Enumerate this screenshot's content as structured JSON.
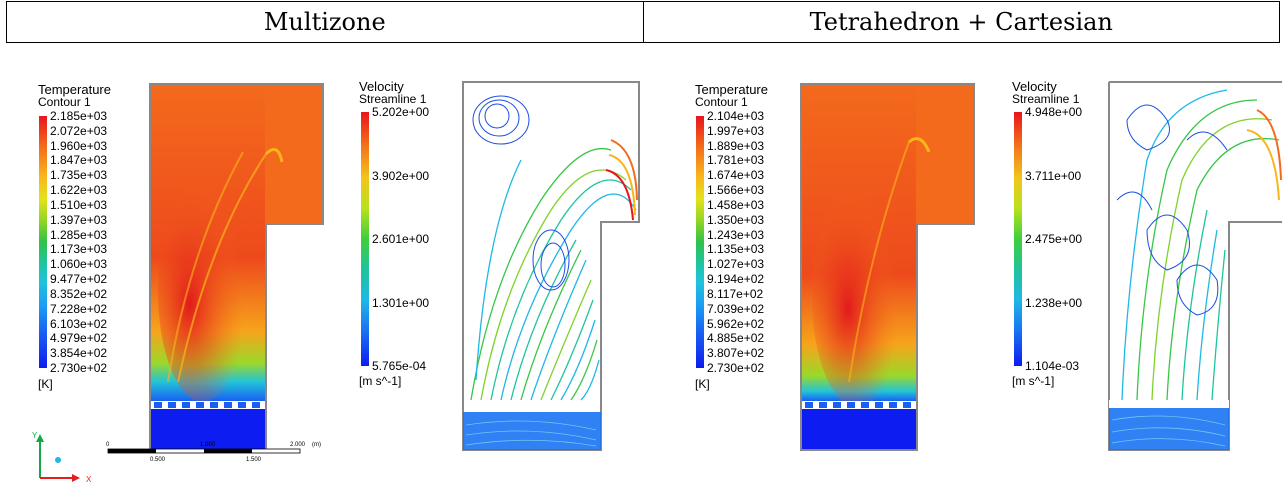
{
  "headers": [
    "Multizone",
    "Tetrahedron  + Cartesian"
  ],
  "left": {
    "temperature": {
      "title": "Temperature",
      "subtitle": "Contour 1",
      "ticks": [
        "2.185e+03",
        "2.072e+03",
        "1.960e+03",
        "1.847e+03",
        "1.735e+03",
        "1.622e+03",
        "1.510e+03",
        "1.397e+03",
        "1.285e+03",
        "1.173e+03",
        "1.060e+03",
        "9.477e+02",
        "8.352e+02",
        "7.228e+02",
        "6.103e+02",
        "4.979e+02",
        "3.854e+02",
        "2.730e+02"
      ],
      "unit": "[K]"
    },
    "velocity": {
      "title": "Velocity",
      "subtitle": "Streamline 1",
      "ticks": [
        "5.202e+00",
        "3.902e+00",
        "2.601e+00",
        "1.301e+00",
        "5.765e-04"
      ],
      "unit": "[m s^-1]"
    }
  },
  "right": {
    "temperature": {
      "title": "Temperature",
      "subtitle": "Contour 1",
      "ticks": [
        "2.104e+03",
        "1.997e+03",
        "1.889e+03",
        "1.781e+03",
        "1.674e+03",
        "1.566e+03",
        "1.458e+03",
        "1.350e+03",
        "1.243e+03",
        "1.135e+03",
        "1.027e+03",
        "9.194e+02",
        "8.117e+02",
        "7.039e+02",
        "5.962e+02",
        "4.885e+02",
        "3.807e+02",
        "2.730e+02"
      ],
      "unit": "[K]"
    },
    "velocity": {
      "title": "Velocity",
      "subtitle": "Streamline 1",
      "ticks": [
        "4.948e+00",
        "3.711e+00",
        "2.475e+00",
        "1.238e+00",
        "1.104e-03"
      ],
      "unit": "[m s^-1]"
    }
  },
  "axes": {
    "y_label": "Y",
    "x_label": "X"
  },
  "scale": {
    "labels_top": [
      "0",
      "1.000",
      "2.000"
    ],
    "labels_bottom": [
      "0.500",
      "1.500"
    ],
    "unit": "(m)"
  },
  "colors": {
    "hot": "#e8141c",
    "orange": "#f36a1c",
    "cold": "#0d1cf0",
    "accent_y": "#15a84a",
    "accent_x": "#e61e1e"
  }
}
